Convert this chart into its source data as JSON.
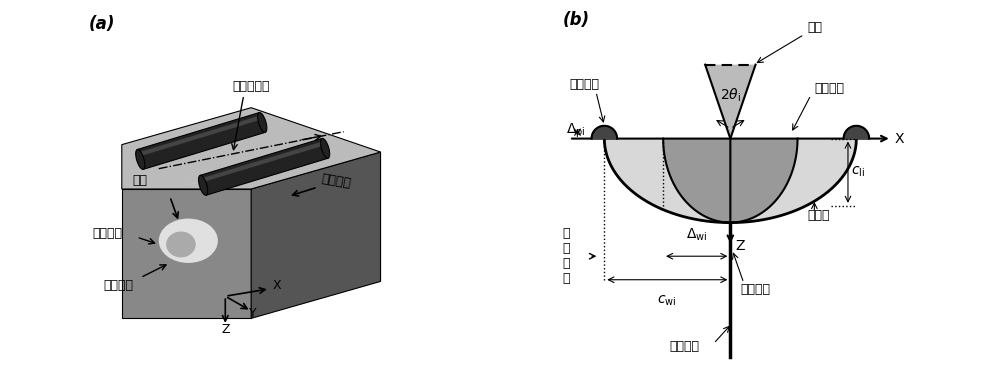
{
  "panel_a_label": "(a)",
  "panel_b_label": "(b)",
  "bg_color": "#ffffff",
  "labels_a": {
    "scratch_center": "划痕中心线",
    "abrasive": "磨粒",
    "cutting_dir": "划划方向",
    "lateral_crack": "横向裂纹",
    "median_crack": "中位裂纹"
  },
  "labels_b": {
    "material_pileup": "材料堆积",
    "abrasive": "磨粒",
    "plastic_zone": "塑性区域",
    "ellipse_arc": "源圆弧",
    "lateral_crack": "横向裂纹",
    "median_crack": "中位裂纹",
    "measure_pos": "被\n测\n位\n置",
    "X_axis": "X",
    "Z_axis": "Z"
  }
}
